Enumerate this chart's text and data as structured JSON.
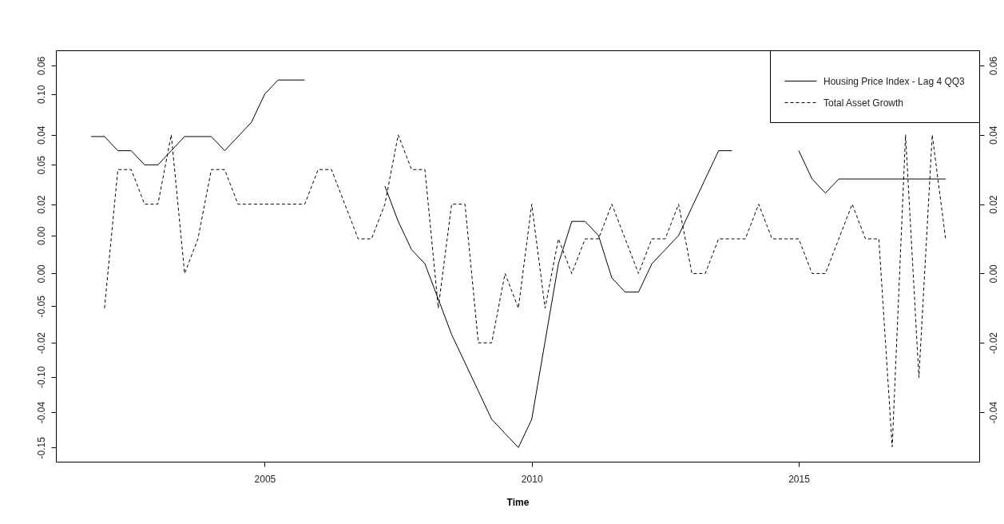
{
  "chart_data": {
    "type": "line",
    "xlabel": "Time",
    "x": [
      2001.75,
      2002,
      2002.25,
      2002.5,
      2002.75,
      2003,
      2003.25,
      2003.5,
      2003.75,
      2004,
      2004.25,
      2004.5,
      2004.75,
      2005,
      2005.25,
      2005.5,
      2005.75,
      2006,
      2006.25,
      2006.5,
      2006.75,
      2007,
      2007.25,
      2007.5,
      2007.75,
      2008,
      2008.25,
      2008.5,
      2008.75,
      2009,
      2009.25,
      2009.5,
      2009.75,
      2010,
      2010.25,
      2010.5,
      2010.75,
      2011,
      2011.25,
      2011.5,
      2011.75,
      2012,
      2012.25,
      2012.5,
      2012.75,
      2013,
      2013.25,
      2013.5,
      2013.75,
      2014,
      2014.25,
      2014.5,
      2014.75,
      2015,
      2015.25,
      2015.5,
      2015.75,
      2016,
      2016.25,
      2016.5,
      2016.75,
      2017,
      2017.25,
      2017.5,
      2017.75
    ],
    "series": [
      {
        "name": "Housing Price Index - Lag 4 QQ3",
        "color": "#000000",
        "line_style": "solid",
        "axis": "y",
        "values": [
          0.07,
          0.07,
          0.06,
          0.06,
          0.05,
          0.05,
          0.06,
          0.07,
          0.07,
          0.07,
          0.06,
          0.07,
          0.08,
          0.1,
          0.11,
          0.11,
          0.11,
          null,
          null,
          null,
          null,
          null,
          0.035,
          0.01,
          -0.01,
          -0.02,
          -0.045,
          -0.07,
          -0.09,
          -0.11,
          -0.13,
          -0.14,
          -0.15,
          -0.13,
          -0.075,
          -0.02,
          0.01,
          0.01,
          0.0,
          -0.03,
          -0.04,
          -0.04,
          -0.02,
          -0.01,
          0.0,
          0.02,
          0.04,
          0.06,
          0.06,
          null,
          null,
          null,
          null,
          0.06,
          0.04,
          0.03,
          0.04,
          0.04,
          0.04,
          0.04,
          0.04,
          0.04,
          0.04,
          0.04,
          0.04
        ]
      },
      {
        "name": "Total Asset Growth",
        "color": "#000000",
        "line_style": "dashed",
        "axis": "y2",
        "values": [
          null,
          -0.01,
          0.03,
          0.03,
          0.02,
          0.02,
          0.04,
          0.0,
          0.01,
          0.03,
          0.03,
          0.02,
          0.02,
          0.02,
          0.02,
          0.02,
          0.02,
          0.03,
          0.03,
          0.02,
          0.01,
          0.01,
          0.02,
          0.04,
          0.03,
          0.03,
          -0.01,
          0.02,
          0.02,
          -0.02,
          -0.02,
          0.0,
          -0.01,
          0.02,
          -0.01,
          0.01,
          0.0,
          0.01,
          0.01,
          0.02,
          0.01,
          0.0,
          0.01,
          0.01,
          0.02,
          0.0,
          0.0,
          0.01,
          0.01,
          0.01,
          0.02,
          0.01,
          0.01,
          0.01,
          0.0,
          0.0,
          0.01,
          0.02,
          0.01,
          0.01,
          -0.05,
          0.04,
          -0.03,
          0.04,
          0.01
        ]
      }
    ],
    "xlim": [
      2001.09,
      2018.38
    ],
    "xticks": [
      2005,
      2010,
      2015
    ],
    "ylim": [
      -0.16,
      0.131
    ],
    "yticks": [
      -0.15,
      {
        "value": -0.1,
        "label": "-0.10"
      },
      -0.05,
      {
        "value": 0,
        "label": "0.00"
      },
      0.05,
      {
        "value": 0.1,
        "label": "0.10"
      }
    ],
    "y2lim": [
      -0.0543,
      0.0644
    ],
    "y2ticks": [
      -0.04,
      -0.02,
      {
        "value": 0,
        "label": "0.00"
      },
      0.02,
      0.04,
      0.06
    ],
    "y3lim": [
      -0.0543,
      0.0644
    ],
    "y3ticks": [
      -0.04,
      -0.02,
      {
        "value": 0,
        "label": "0.00"
      },
      0.02,
      0.04,
      0.06
    ],
    "grid": false,
    "legend": "top right",
    "marker": "none"
  }
}
